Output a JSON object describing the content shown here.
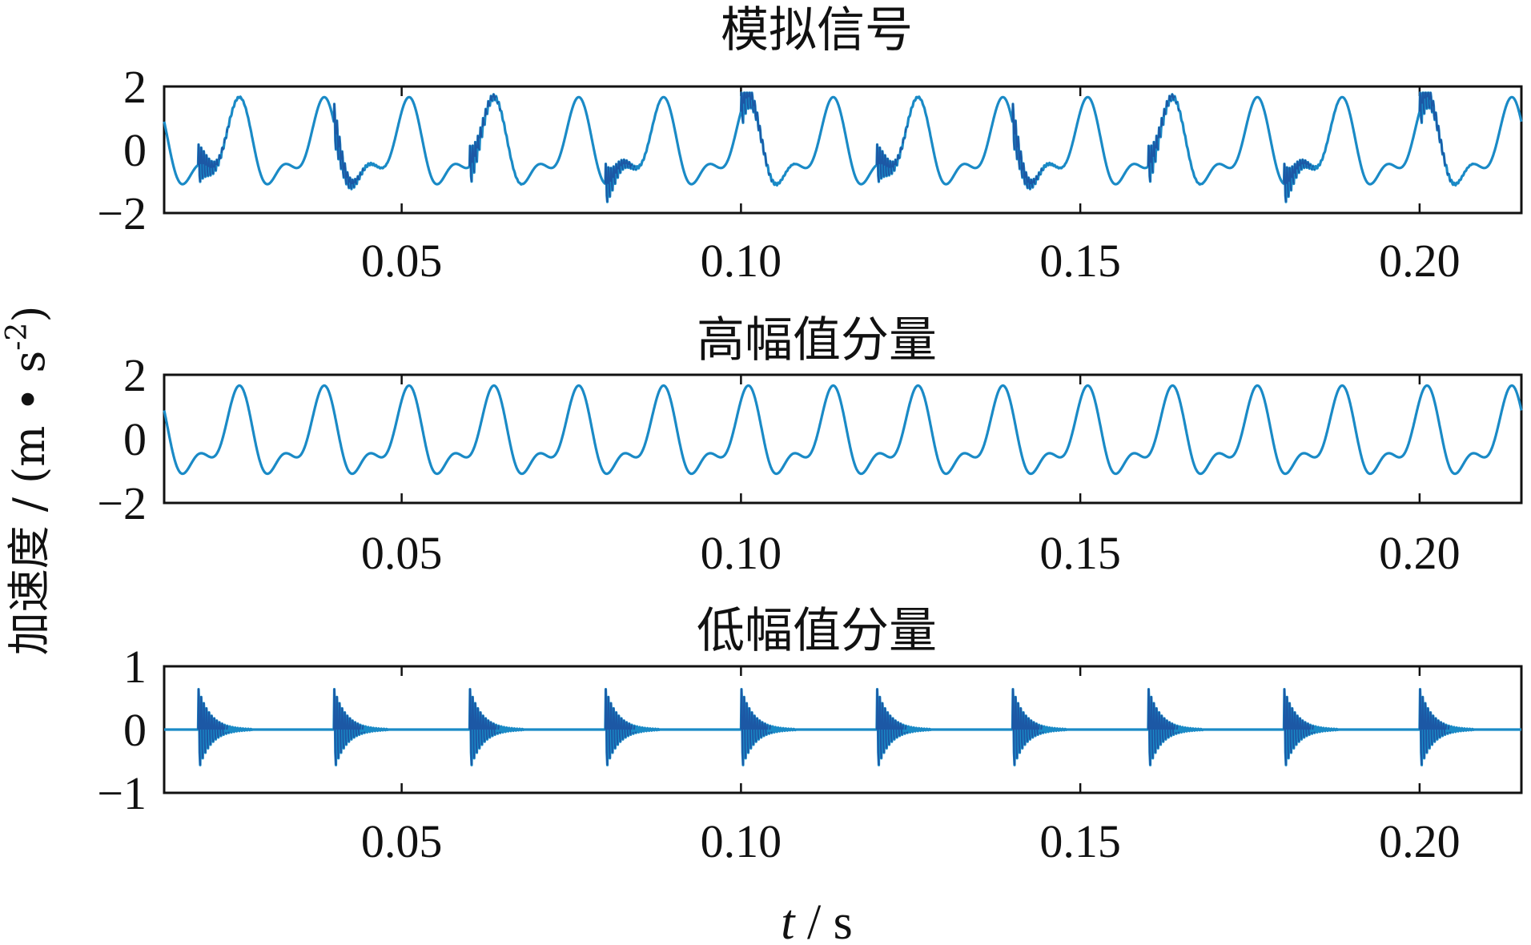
{
  "ylabel": "加速度 / (m • s",
  "ylabel_sup": "-2",
  "ylabel_close": ")",
  "xlabel_var": "t",
  "xlabel_unit": " / s",
  "colors": {
    "signal": "#1a8ac6",
    "signal_dark": "#1f2f8a",
    "axis": "#111111"
  },
  "chart_data": [
    {
      "type": "line",
      "title": "模拟信号",
      "xlim": [
        0.015,
        0.215
      ],
      "ylim": [
        -2,
        2
      ],
      "xticks": [
        0.05,
        0.1,
        0.15,
        0.2
      ],
      "xtick_labels": [
        "0.05",
        "0.10",
        "0.15",
        "0.20"
      ],
      "yticks": [
        2,
        0,
        -2
      ],
      "ytick_labels": [
        "2",
        "0",
        "−2"
      ],
      "series": [
        {
          "description_key": "sum",
          "period_s": 0.0125,
          "amplitude": 1.3,
          "impulse_times_s": [
            0.02,
            0.04,
            0.06,
            0.08,
            0.1,
            0.12,
            0.14,
            0.16,
            0.18,
            0.2
          ],
          "impulse_amplitude": 0.7
        }
      ]
    },
    {
      "type": "line",
      "title": "高幅值分量",
      "xlim": [
        0.015,
        0.215
      ],
      "ylim": [
        -2,
        2
      ],
      "xticks": [
        0.05,
        0.1,
        0.15,
        0.2
      ],
      "xtick_labels": [
        "0.05",
        "0.10",
        "0.15",
        "0.20"
      ],
      "yticks": [
        2,
        0,
        -2
      ],
      "ytick_labels": [
        "2",
        "0",
        "−2"
      ],
      "series": [
        {
          "description_key": "periodic",
          "period_s": 0.0125,
          "amplitude": 1.3
        }
      ]
    },
    {
      "type": "line",
      "title": "低幅值分量",
      "xlim": [
        0.015,
        0.215
      ],
      "ylim": [
        -1,
        1
      ],
      "xticks": [
        0.05,
        0.1,
        0.15,
        0.2
      ],
      "xtick_labels": [
        "0.05",
        "0.10",
        "0.15",
        "0.20"
      ],
      "yticks": [
        1,
        0,
        -1
      ],
      "ytick_labels": [
        "1",
        "0",
        "−1"
      ],
      "series": [
        {
          "description_key": "impulses",
          "impulse_times_s": [
            0.02,
            0.04,
            0.06,
            0.08,
            0.1,
            0.12,
            0.14,
            0.16,
            0.18,
            0.2
          ],
          "impulse_amplitude": 0.7
        }
      ]
    }
  ]
}
